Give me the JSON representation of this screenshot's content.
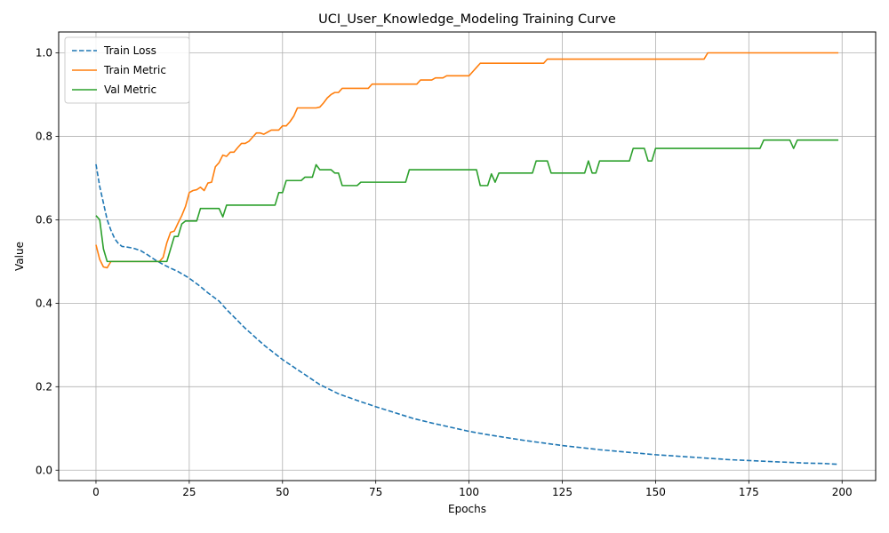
{
  "chart_data": {
    "type": "line",
    "title": "UCI_User_Knowledge_Modeling Training Curve",
    "xlabel": "Epochs",
    "ylabel": "Value",
    "xlim": [
      -10,
      209
    ],
    "ylim": [
      -0.025,
      1.05
    ],
    "xticks": [
      0,
      25,
      50,
      75,
      100,
      125,
      150,
      175,
      200
    ],
    "xtick_labels": [
      "0",
      "25",
      "50",
      "75",
      "100",
      "125",
      "150",
      "175",
      "200"
    ],
    "yticks": [
      0.0,
      0.2,
      0.4,
      0.6,
      0.8,
      1.0
    ],
    "ytick_labels": [
      "0.0",
      "0.2",
      "0.4",
      "0.6",
      "0.8",
      "1.0"
    ],
    "grid": true,
    "legend_position": "upper left",
    "series": [
      {
        "name": "Train Loss",
        "color": "#1f77b4",
        "style": "dashed",
        "points": [
          [
            0,
            0.733
          ],
          [
            1,
            0.68
          ],
          [
            2,
            0.64
          ],
          [
            3,
            0.6
          ],
          [
            4,
            0.575
          ],
          [
            5,
            0.555
          ],
          [
            6,
            0.543
          ],
          [
            7,
            0.536
          ],
          [
            8,
            0.535
          ],
          [
            10,
            0.532
          ],
          [
            12,
            0.526
          ],
          [
            14,
            0.515
          ],
          [
            16,
            0.503
          ],
          [
            18,
            0.493
          ],
          [
            20,
            0.484
          ],
          [
            22,
            0.476
          ],
          [
            25,
            0.46
          ],
          [
            28,
            0.44
          ],
          [
            30,
            0.425
          ],
          [
            33,
            0.405
          ],
          [
            35,
            0.385
          ],
          [
            40,
            0.34
          ],
          [
            45,
            0.3
          ],
          [
            50,
            0.265
          ],
          [
            55,
            0.235
          ],
          [
            60,
            0.205
          ],
          [
            65,
            0.183
          ],
          [
            70,
            0.167
          ],
          [
            75,
            0.152
          ],
          [
            80,
            0.138
          ],
          [
            85,
            0.124
          ],
          [
            90,
            0.113
          ],
          [
            95,
            0.103
          ],
          [
            100,
            0.093
          ],
          [
            105,
            0.085
          ],
          [
            110,
            0.078
          ],
          [
            115,
            0.071
          ],
          [
            120,
            0.065
          ],
          [
            125,
            0.059
          ],
          [
            130,
            0.054
          ],
          [
            135,
            0.049
          ],
          [
            140,
            0.045
          ],
          [
            145,
            0.041
          ],
          [
            150,
            0.037
          ],
          [
            155,
            0.034
          ],
          [
            160,
            0.031
          ],
          [
            165,
            0.028
          ],
          [
            170,
            0.025
          ],
          [
            175,
            0.023
          ],
          [
            180,
            0.021
          ],
          [
            185,
            0.019
          ],
          [
            190,
            0.017
          ],
          [
            195,
            0.016
          ],
          [
            199,
            0.014
          ]
        ]
      },
      {
        "name": "Train Metric",
        "color": "#ff7f0e",
        "style": "solid",
        "points": [
          [
            0,
            0.54
          ],
          [
            1,
            0.505
          ],
          [
            2,
            0.487
          ],
          [
            3,
            0.485
          ],
          [
            4,
            0.5
          ],
          [
            5,
            0.5
          ],
          [
            10,
            0.5
          ],
          [
            15,
            0.5
          ],
          [
            17,
            0.5
          ],
          [
            18,
            0.51
          ],
          [
            19,
            0.545
          ],
          [
            20,
            0.57
          ],
          [
            21,
            0.573
          ],
          [
            22,
            0.592
          ],
          [
            23,
            0.61
          ],
          [
            24,
            0.632
          ],
          [
            25,
            0.665
          ],
          [
            26,
            0.67
          ],
          [
            27,
            0.672
          ],
          [
            28,
            0.678
          ],
          [
            29,
            0.67
          ],
          [
            30,
            0.688
          ],
          [
            31,
            0.69
          ],
          [
            32,
            0.727
          ],
          [
            33,
            0.737
          ],
          [
            34,
            0.755
          ],
          [
            35,
            0.752
          ],
          [
            36,
            0.762
          ],
          [
            37,
            0.762
          ],
          [
            38,
            0.773
          ],
          [
            39,
            0.783
          ],
          [
            40,
            0.783
          ],
          [
            41,
            0.788
          ],
          [
            42,
            0.798
          ],
          [
            43,
            0.808
          ],
          [
            44,
            0.808
          ],
          [
            45,
            0.805
          ],
          [
            46,
            0.81
          ],
          [
            47,
            0.815
          ],
          [
            49,
            0.815
          ],
          [
            50,
            0.825
          ],
          [
            51,
            0.825
          ],
          [
            52,
            0.835
          ],
          [
            53,
            0.848
          ],
          [
            54,
            0.868
          ],
          [
            58,
            0.868
          ],
          [
            59,
            0.868
          ],
          [
            60,
            0.87
          ],
          [
            61,
            0.88
          ],
          [
            62,
            0.892
          ],
          [
            63,
            0.9
          ],
          [
            64,
            0.905
          ],
          [
            65,
            0.905
          ],
          [
            66,
            0.915
          ],
          [
            72,
            0.915
          ],
          [
            73,
            0.915
          ],
          [
            74,
            0.925
          ],
          [
            86,
            0.925
          ],
          [
            87,
            0.935
          ],
          [
            90,
            0.935
          ],
          [
            91,
            0.94
          ],
          [
            93,
            0.94
          ],
          [
            94,
            0.945
          ],
          [
            100,
            0.945
          ],
          [
            101,
            0.955
          ],
          [
            102,
            0.965
          ],
          [
            103,
            0.975
          ],
          [
            118,
            0.975
          ],
          [
            119,
            0.975
          ],
          [
            120,
            0.975
          ],
          [
            121,
            0.985
          ],
          [
            122,
            0.985
          ],
          [
            163,
            0.985
          ],
          [
            164,
            1.0
          ],
          [
            199,
            1.0
          ]
        ]
      },
      {
        "name": "Val Metric",
        "color": "#2ca02c",
        "style": "solid",
        "points": [
          [
            0,
            0.61
          ],
          [
            1,
            0.6
          ],
          [
            2,
            0.53
          ],
          [
            3,
            0.5
          ],
          [
            4,
            0.5
          ],
          [
            10,
            0.5
          ],
          [
            15,
            0.5
          ],
          [
            19,
            0.5
          ],
          [
            20,
            0.53
          ],
          [
            21,
            0.56
          ],
          [
            22,
            0.56
          ],
          [
            23,
            0.59
          ],
          [
            24,
            0.597
          ],
          [
            25,
            0.597
          ],
          [
            27,
            0.597
          ],
          [
            28,
            0.627
          ],
          [
            33,
            0.627
          ],
          [
            34,
            0.607
          ],
          [
            35,
            0.635
          ],
          [
            48,
            0.635
          ],
          [
            49,
            0.665
          ],
          [
            50,
            0.665
          ],
          [
            51,
            0.694
          ],
          [
            55,
            0.694
          ],
          [
            56,
            0.702
          ],
          [
            58,
            0.702
          ],
          [
            59,
            0.732
          ],
          [
            60,
            0.72
          ],
          [
            63,
            0.72
          ],
          [
            64,
            0.712
          ],
          [
            65,
            0.712
          ],
          [
            66,
            0.682
          ],
          [
            70,
            0.682
          ],
          [
            71,
            0.69
          ],
          [
            83,
            0.69
          ],
          [
            84,
            0.72
          ],
          [
            102,
            0.72
          ],
          [
            103,
            0.682
          ],
          [
            105,
            0.682
          ],
          [
            106,
            0.71
          ],
          [
            107,
            0.69
          ],
          [
            108,
            0.712
          ],
          [
            117,
            0.712
          ],
          [
            118,
            0.741
          ],
          [
            121,
            0.741
          ],
          [
            122,
            0.712
          ],
          [
            131,
            0.712
          ],
          [
            132,
            0.741
          ],
          [
            133,
            0.712
          ],
          [
            134,
            0.712
          ],
          [
            135,
            0.741
          ],
          [
            143,
            0.741
          ],
          [
            144,
            0.771
          ],
          [
            147,
            0.771
          ],
          [
            148,
            0.741
          ],
          [
            149,
            0.741
          ],
          [
            150,
            0.771
          ],
          [
            178,
            0.771
          ],
          [
            179,
            0.791
          ],
          [
            186,
            0.791
          ],
          [
            187,
            0.771
          ],
          [
            188,
            0.791
          ],
          [
            199,
            0.791
          ]
        ]
      }
    ]
  }
}
